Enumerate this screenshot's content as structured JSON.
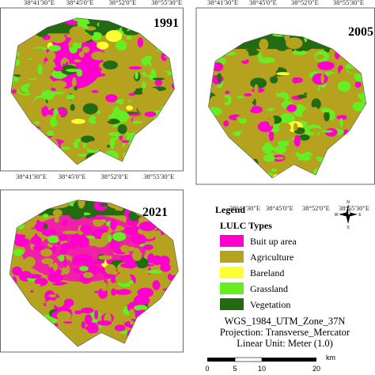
{
  "panels": [
    {
      "year": "1991",
      "coords_top": [
        "38°41'30\"E",
        "38°45'0\"E",
        "38°52'0\"E",
        "38°55'30\"E"
      ],
      "coords_bottom": [
        "38°41'30\"E",
        "38°45'0\"E",
        "38°52'0\"E",
        "38°55'30\"E"
      ]
    },
    {
      "year": "2005",
      "coords_top": [
        "38°41'30\"E",
        "38°45'0\"E",
        "38°52'0\"E",
        "38°55'30\"E"
      ]
    },
    {
      "year": "2021",
      "coords_top": [
        "38°41'30\"E",
        "38°45'0\"E",
        "38°52'0\"E",
        "38°55'30\"E"
      ]
    }
  ],
  "legend": {
    "title": "Legend",
    "subtitle": "LULC Types",
    "items": [
      {
        "label": "Buit up area",
        "color": "#ff00cc"
      },
      {
        "label": "Agriculture",
        "color": "#b5a21e"
      },
      {
        "label": "Bareland",
        "color": "#ffff33"
      },
      {
        "label": "Grassland",
        "color": "#66ee22"
      },
      {
        "label": "Vegetation",
        "color": "#236b12"
      }
    ]
  },
  "projection": [
    "WGS_1984_UTM_Zone_37N",
    "Projection: Transverse_Mercator",
    "Linear Unit: Meter (1.0)"
  ],
  "compass": {
    "north": "N",
    "south": "S",
    "east": "E",
    "west": "W"
  },
  "scale_bar": {
    "unit": "km",
    "labels": [
      "0",
      "5",
      "10",
      "20"
    ]
  }
}
